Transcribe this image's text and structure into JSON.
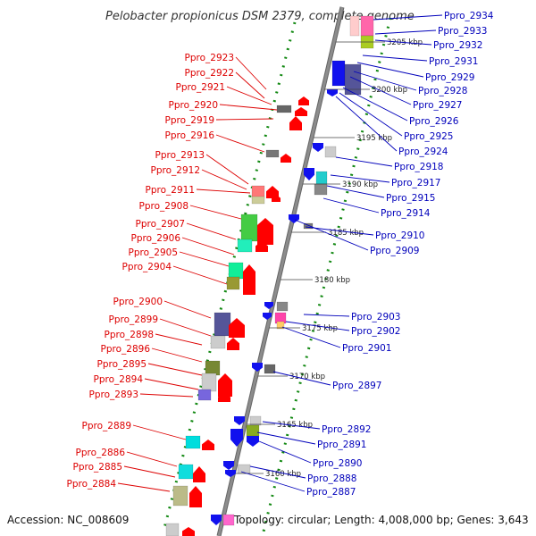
{
  "title": "Pelobacter propionicus DSM 2379, complete genome",
  "footer": {
    "accession": "Accession: NC_008609",
    "topology": "Topology: circular; Length: 4,008,000 bp; Genes: 3,643"
  },
  "colors": {
    "left_label": "#dd0000",
    "right_label": "#0000bb",
    "backbone": "#8c8c8c",
    "track_dots": "#118811"
  },
  "ticks": [
    "3205 kbp",
    "3200 kbp",
    "3195 kbp",
    "3190 kbp",
    "3185 kbp",
    "3180 kbp",
    "3175 kbp",
    "3170 kbp",
    "3165 kbp",
    "3160 kbp"
  ],
  "left_labels": [
    "Ppro_2923",
    "Ppro_2922",
    "Ppro_2921",
    "Ppro_2920",
    "Ppro_2919",
    "Ppro_2916",
    "Ppro_2913",
    "Ppro_2912",
    "Ppro_2911",
    "Ppro_2908",
    "Ppro_2907",
    "Ppro_2906",
    "Ppro_2905",
    "Ppro_2904",
    "Ppro_2900",
    "Ppro_2899",
    "Ppro_2898",
    "Ppro_2896",
    "Ppro_2895",
    "Ppro_2894",
    "Ppro_2893",
    "Ppro_2889",
    "Ppro_2886",
    "Ppro_2885",
    "Ppro_2884"
  ],
  "right_labels": [
    "Ppro_2934",
    "Ppro_2933",
    "Ppro_2932",
    "Ppro_2931",
    "Ppro_2929",
    "Ppro_2928",
    "Ppro_2927",
    "Ppro_2926",
    "Ppro_2925",
    "Ppro_2924",
    "Ppro_2918",
    "Ppro_2917",
    "Ppro_2915",
    "Ppro_2914",
    "Ppro_2910",
    "Ppro_2909",
    "Ppro_2903",
    "Ppro_2902",
    "Ppro_2901",
    "Ppro_2897",
    "Ppro_2892",
    "Ppro_2891",
    "Ppro_2890",
    "Ppro_2888",
    "Ppro_2887"
  ]
}
